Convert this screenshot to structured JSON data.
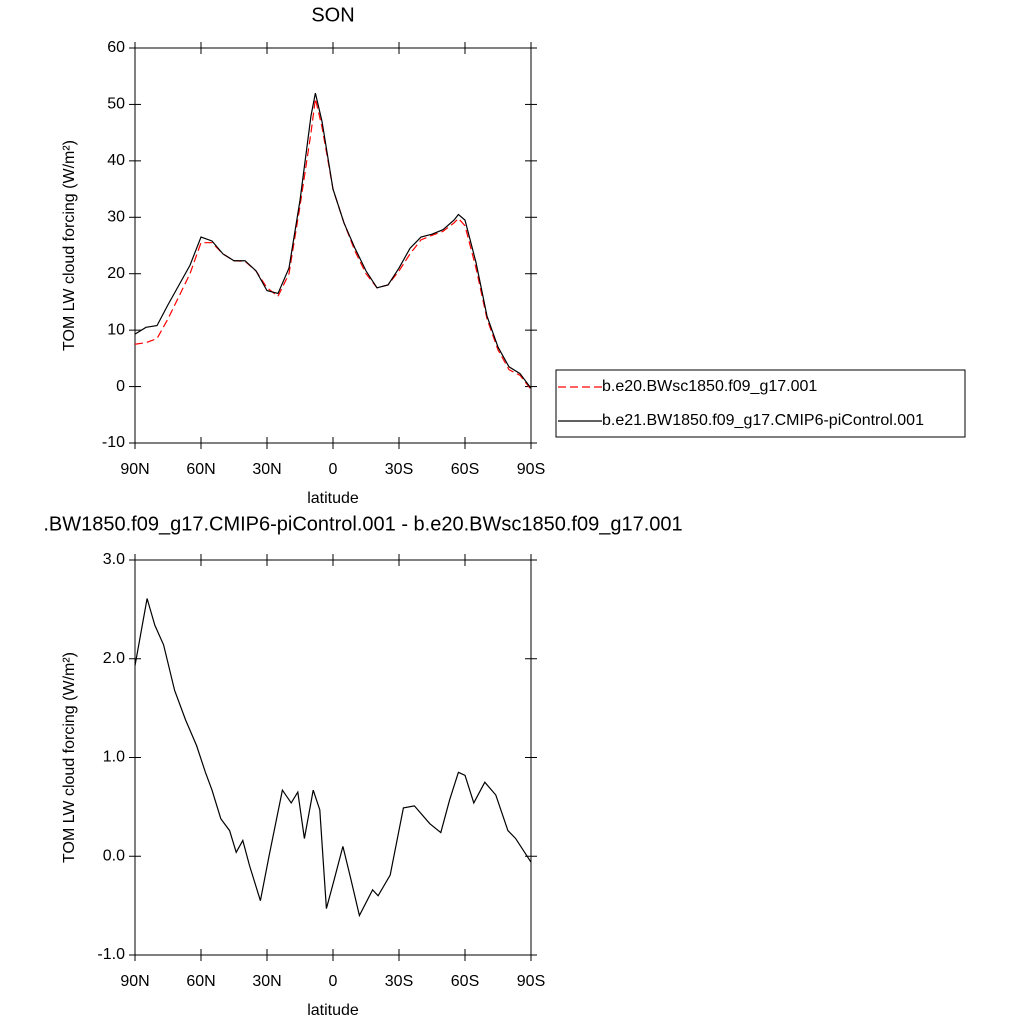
{
  "chart_data": [
    {
      "type": "line",
      "title": "SON",
      "x_label": "latitude",
      "y_label": "TOM LW cloud forcing (W/m²)",
      "x": [
        90,
        85,
        80,
        75,
        70,
        65,
        60,
        55,
        50,
        45,
        40,
        35,
        30,
        25,
        20,
        15,
        10,
        8,
        5,
        0,
        -5,
        -10,
        -15,
        -20,
        -25,
        -30,
        -35,
        -40,
        -45,
        -50,
        -55,
        -57,
        -60,
        -65,
        -70,
        -75,
        -80,
        -85,
        -90
      ],
      "xlim": [
        90,
        -90
      ],
      "xticks": [
        {
          "value": 90,
          "label": "90N"
        },
        {
          "value": 60,
          "label": "60N"
        },
        {
          "value": 30,
          "label": "30N"
        },
        0,
        {
          "value": -30,
          "label": "30S"
        },
        {
          "value": -60,
          "label": "60S"
        },
        {
          "value": -90,
          "label": "90S"
        }
      ],
      "ylim": [
        -10,
        60
      ],
      "yticks": [
        -10,
        0,
        10,
        20,
        30,
        40,
        50,
        60
      ],
      "legend": "right",
      "series": [
        {
          "name": "b.e20.BWsc1850.f09_g17.001",
          "color": "#ff0000",
          "line_style": "dashed",
          "values": [
            7.5,
            7.8,
            8.5,
            12,
            16,
            20,
            25.5,
            25.5,
            23.5,
            22.3,
            22.2,
            20.5,
            17.5,
            16,
            20,
            32,
            45,
            51,
            46,
            35,
            29,
            24,
            20,
            17.5,
            18,
            20.5,
            23.5,
            26,
            26.8,
            27.5,
            29,
            29.8,
            28.5,
            21,
            12,
            6.5,
            3,
            2,
            -0.5
          ]
        },
        {
          "name": "b.e21.BW1850.f09_g17.CMIP6-piControl.001",
          "color": "#000000",
          "line_style": "solid",
          "values": [
            9.3,
            10.5,
            10.8,
            14.5,
            18,
            21.5,
            26.5,
            25.8,
            23.5,
            22.3,
            22.3,
            20.5,
            17,
            16.5,
            21,
            33,
            48,
            52,
            47,
            35,
            29,
            24.5,
            20.5,
            17.5,
            18,
            21,
            24.5,
            26.5,
            27,
            27.8,
            29.5,
            30.5,
            29.5,
            22,
            12.5,
            7,
            3.5,
            2.3,
            -0.3
          ]
        }
      ]
    },
    {
      "type": "line",
      "title": ".BW1850.f09_g17.CMIP6-piControl.001 - b.e20.BWsc1850.f09_g17.001",
      "x_label": "latitude",
      "y_label": "TOM LW cloud forcing (W/m²)",
      "x": [
        90,
        84.5,
        81,
        77,
        72,
        67,
        62,
        58,
        55,
        51,
        47,
        44,
        41,
        38,
        33,
        29,
        23,
        19,
        16,
        13,
        9,
        6,
        3,
        -0.5,
        -4.5,
        -8,
        -12,
        -18,
        -20.5,
        -26,
        -32,
        -37,
        -44,
        -49,
        -53,
        -57,
        -60,
        -64,
        -69,
        -74,
        -79.5,
        -83,
        -90
      ],
      "xlim": [
        90,
        -90
      ],
      "xticks": [
        {
          "value": 90,
          "label": "90N"
        },
        {
          "value": 60,
          "label": "60N"
        },
        {
          "value": 30,
          "label": "30N"
        },
        0,
        {
          "value": -30,
          "label": "30S"
        },
        {
          "value": -60,
          "label": "60S"
        },
        {
          "value": -90,
          "label": "90S"
        }
      ],
      "ylim": [
        -1,
        3
      ],
      "yticks": [
        {
          "value": -1,
          "label": "-1.0"
        },
        {
          "value": 0,
          "label": "0.0"
        },
        {
          "value": 1,
          "label": "1.0"
        },
        {
          "value": 2,
          "label": "2.0"
        },
        {
          "value": 3,
          "label": "3.0"
        }
      ],
      "series": [
        {
          "color": "#000000",
          "line_style": "solid",
          "values": [
            1.93,
            2.61,
            2.34,
            2.14,
            1.68,
            1.38,
            1.12,
            0.85,
            0.67,
            0.38,
            0.26,
            0.04,
            0.16,
            -0.09,
            -0.45,
            0.01,
            0.67,
            0.54,
            0.65,
            0.18,
            0.67,
            0.47,
            -0.53,
            -0.24,
            0.1,
            -0.22,
            -0.6,
            -0.34,
            -0.4,
            -0.19,
            0.49,
            0.51,
            0.33,
            0.24,
            0.57,
            0.85,
            0.82,
            0.54,
            0.75,
            0.62,
            0.26,
            0.18,
            -0.06
          ]
        }
      ]
    }
  ]
}
